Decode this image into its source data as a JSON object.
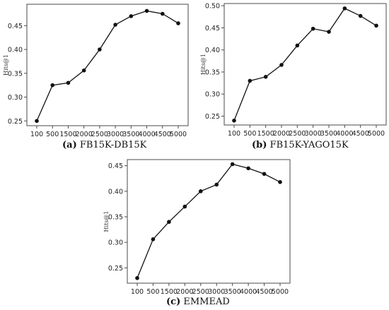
{
  "chart_data": [
    {
      "type": "line",
      "panel_label": "(a)",
      "caption": "FB15K-DB15K",
      "ylabel": "Hits@1",
      "categories": [
        "100",
        "500",
        "1500",
        "2000",
        "2500",
        "3000",
        "3500",
        "4000",
        "4500",
        "5000"
      ],
      "values": [
        0.25,
        0.325,
        0.33,
        0.356,
        0.4,
        0.452,
        0.47,
        0.481,
        0.475,
        0.455
      ],
      "ylim": [
        0.24,
        0.495
      ],
      "yticks": [
        "0.25",
        "0.30",
        "0.35",
        "0.40",
        "0.45"
      ],
      "grid": false,
      "legend": "none"
    },
    {
      "type": "line",
      "panel_label": "(b)",
      "caption": "FB15K-YAGO15K",
      "ylabel": "Hits@1",
      "categories": [
        "100",
        "500",
        "1500",
        "2000",
        "2500",
        "3000",
        "3500",
        "4000",
        "4500",
        "5000"
      ],
      "values": [
        0.24,
        0.33,
        0.339,
        0.366,
        0.41,
        0.448,
        0.441,
        0.494,
        0.477,
        0.455
      ],
      "ylim": [
        0.23,
        0.505
      ],
      "yticks": [
        "0.25",
        "0.30",
        "0.35",
        "0.40",
        "0.45",
        "0.50"
      ],
      "grid": false,
      "legend": "none"
    },
    {
      "type": "line",
      "panel_label": "(c)",
      "caption": "EMMEAD",
      "ylabel": "Hits@1",
      "categories": [
        "100",
        "500",
        "1500",
        "2000",
        "2500",
        "3000",
        "3500",
        "4000",
        "4500",
        "5000"
      ],
      "values": [
        0.23,
        0.306,
        0.34,
        0.37,
        0.4,
        0.413,
        0.453,
        0.445,
        0.434,
        0.418
      ],
      "ylim": [
        0.22,
        0.462
      ],
      "yticks": [
        "0.25",
        "0.30",
        "0.35",
        "0.40",
        "0.45"
      ],
      "grid": false,
      "legend": "none"
    }
  ]
}
